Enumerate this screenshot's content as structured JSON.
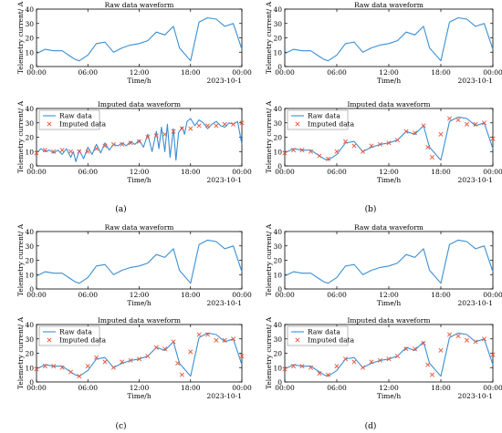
{
  "figure": {
    "panel_labels": [
      "(a)",
      "(b)",
      "(c)",
      "(d)"
    ]
  },
  "chart_data": {
    "type": "line",
    "x_tick_labels": [
      "00:00",
      "06:00",
      "12:00",
      "18:00",
      "00:00"
    ],
    "x_tick_hours": [
      0,
      6,
      12,
      18,
      24
    ],
    "y_tick_labels": [
      "0",
      "10",
      "20",
      "30",
      "40"
    ],
    "ylim": [
      0,
      40
    ],
    "xlim": [
      0,
      24
    ],
    "xlabel": "Time/h",
    "ylabel": "Telemetry current/ A",
    "date_label": "2023-10-1",
    "raw_title": "Raw data waveform",
    "imputed_title": "Imputed data waveform",
    "legend": {
      "raw": "Raw data",
      "imputed": "Imputed data",
      "placement": "top-left"
    },
    "colors": {
      "raw": "#3a8fd4",
      "imputed": "#e8553a"
    },
    "raw_series": {
      "name": "Raw data",
      "x": [
        0,
        1,
        2,
        3,
        4,
        4.5,
        5,
        6,
        7,
        8,
        9,
        10,
        11,
        12,
        13,
        14,
        15,
        16,
        16.7,
        18,
        19,
        20,
        21,
        22,
        23,
        24
      ],
      "y": [
        9,
        12,
        11,
        11,
        7,
        5,
        4,
        8,
        16,
        17,
        10,
        13,
        15,
        16,
        18,
        24,
        22,
        28,
        13,
        4,
        31,
        34,
        33,
        28,
        30,
        12
      ]
    },
    "panels": [
      {
        "label": "(a)",
        "noisy_x": [
          0,
          0.5,
          1,
          1.5,
          2,
          2.5,
          3,
          3.5,
          4,
          4.3,
          4.6,
          5,
          5.5,
          6,
          6.5,
          7,
          7.5,
          8,
          8.5,
          9,
          9.5,
          10,
          10.5,
          11,
          11.5,
          12,
          12.5,
          13,
          13.5,
          14,
          14.3,
          14.6,
          15,
          15.3,
          15.6,
          16,
          16.3,
          16.6,
          17,
          17.3,
          17.6,
          18,
          18.5,
          19,
          19.5,
          20,
          20.5,
          21,
          21.5,
          22,
          22.5,
          23,
          23.5,
          24
        ],
        "noisy_y": [
          9,
          12,
          10,
          11,
          9,
          11,
          8,
          12,
          6,
          10,
          3,
          11,
          5,
          13,
          8,
          15,
          9,
          16,
          11,
          15,
          14,
          16,
          14,
          17,
          15,
          18,
          13,
          22,
          10,
          24,
          12,
          27,
          10,
          29,
          6,
          26,
          4,
          23,
          27,
          22,
          31,
          33,
          28,
          32,
          30,
          26,
          29,
          31,
          28,
          27,
          30,
          29,
          31,
          15
        ],
        "imputed_x": [
          0,
          1,
          2,
          3,
          4,
          5,
          6,
          7,
          8,
          9,
          10,
          11,
          12,
          13,
          14,
          15,
          16,
          17,
          18,
          19,
          20,
          21,
          22,
          23,
          24
        ],
        "imputed_y": [
          9,
          11,
          10,
          11,
          10,
          10,
          10,
          12,
          14,
          15,
          15,
          16,
          17,
          20,
          21,
          22,
          24,
          26,
          26,
          28,
          28,
          28,
          29,
          29,
          30
        ]
      },
      {
        "label": "(b)",
        "imputed_x": [
          0,
          1,
          2,
          3,
          4,
          5,
          6,
          7,
          8,
          9,
          10,
          11,
          12,
          13,
          14,
          15,
          16,
          16.5,
          17,
          18,
          19,
          20,
          21,
          22,
          23,
          24
        ],
        "imputed_y": [
          9,
          11,
          11,
          10,
          7,
          5,
          10,
          17,
          14,
          10,
          14,
          15,
          16,
          18,
          24,
          23,
          28,
          13,
          6,
          22,
          33,
          32,
          29,
          29,
          30,
          19
        ]
      },
      {
        "label": "(c)",
        "imputed_x": [
          0,
          1,
          2,
          3,
          4,
          5,
          6,
          7,
          8,
          9,
          10,
          11,
          12,
          13,
          14,
          15,
          16,
          16.5,
          17,
          18,
          19,
          20,
          21,
          22,
          23,
          24
        ],
        "imputed_y": [
          9,
          11,
          11,
          10,
          7,
          4,
          11,
          17,
          14,
          10,
          14,
          15,
          16,
          18,
          24,
          23,
          28,
          13,
          5,
          21,
          33,
          33,
          29,
          29,
          30,
          18
        ]
      },
      {
        "label": "(d)",
        "imputed_x": [
          0,
          1,
          2,
          3,
          4,
          5,
          6,
          7,
          8,
          9,
          10,
          11,
          12,
          13,
          14,
          15,
          16,
          16.5,
          17,
          18,
          19,
          20,
          21,
          22,
          23,
          24
        ],
        "imputed_y": [
          9,
          11,
          11,
          10,
          6,
          5,
          11,
          16,
          14,
          10,
          14,
          15,
          16,
          18,
          23,
          23,
          27,
          12,
          5,
          22,
          33,
          32,
          29,
          28,
          30,
          19
        ]
      }
    ]
  }
}
